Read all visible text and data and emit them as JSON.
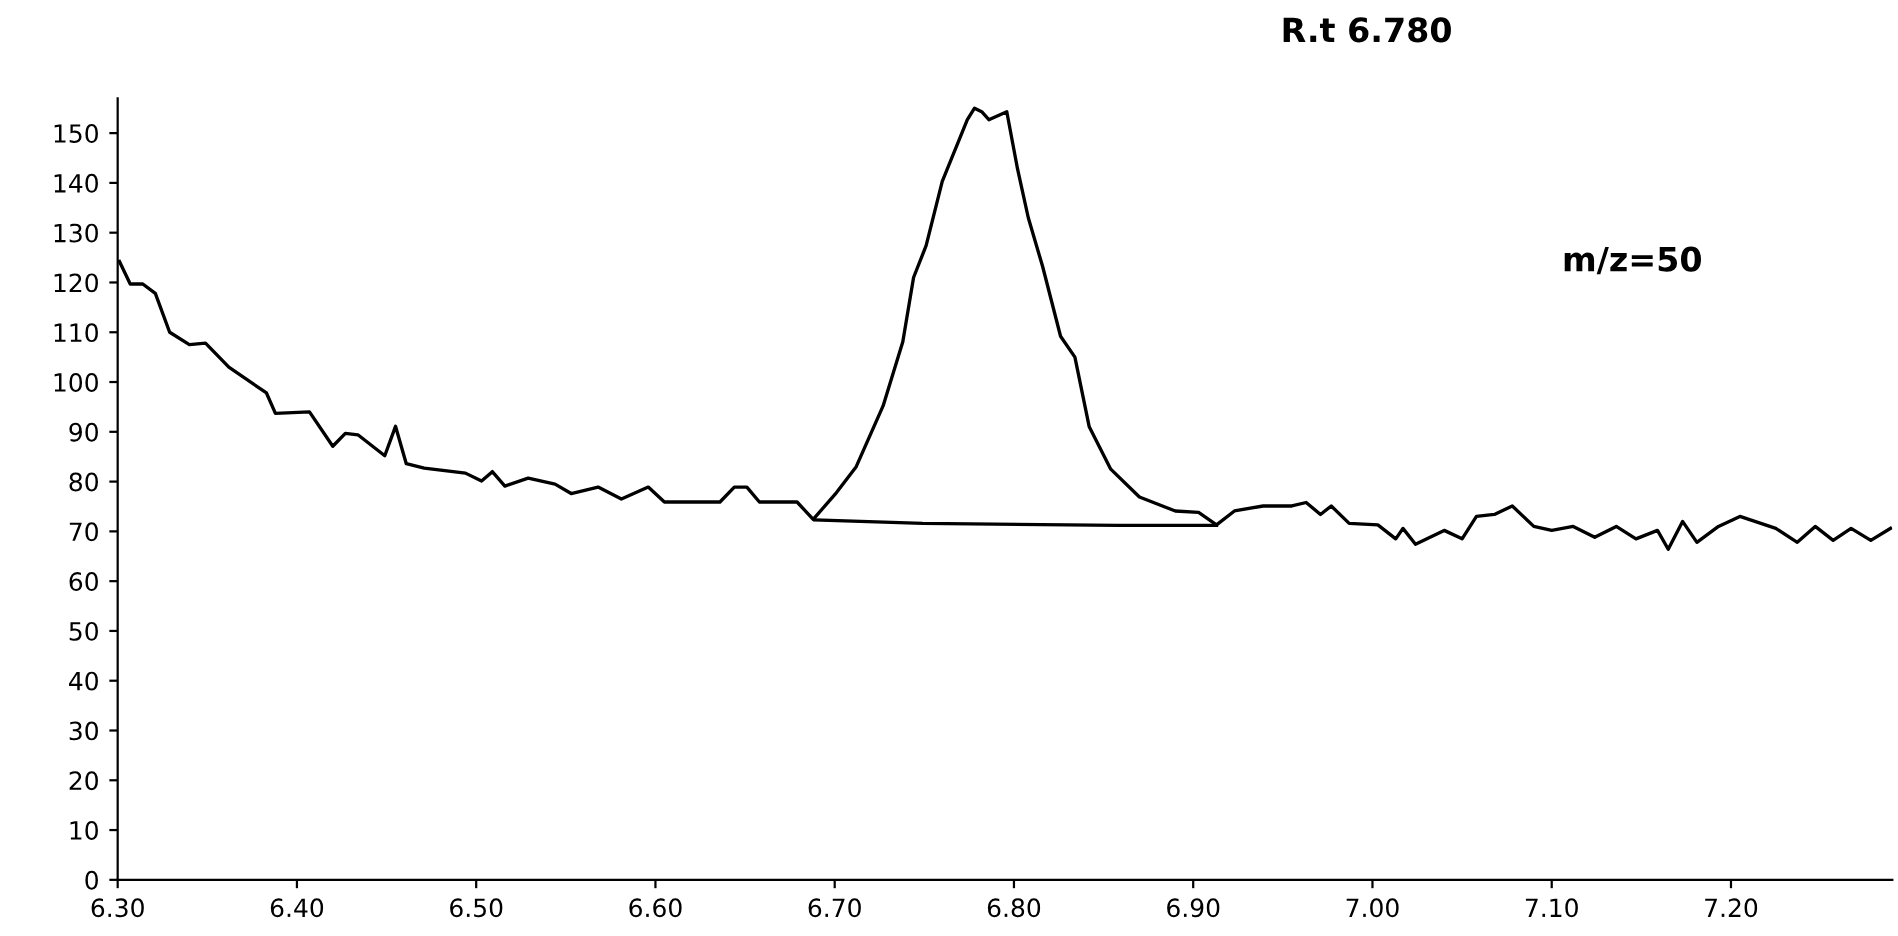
{
  "chart_data": {
    "type": "line",
    "annotations": [
      "R.t 6.780",
      "m/z=50"
    ],
    "series": [
      {
        "color": "#000000",
        "x": [
          6.301,
          6.307,
          6.314,
          6.321,
          6.329,
          6.34,
          6.349,
          6.362,
          6.383,
          6.388,
          6.407,
          6.42,
          6.427,
          6.434,
          6.449,
          6.455,
          6.461,
          6.471,
          6.494,
          6.503,
          6.509,
          6.516,
          6.529,
          6.544,
          6.553,
          6.568,
          6.581,
          6.596,
          6.605,
          6.636,
          6.644,
          6.651,
          6.658,
          6.679,
          6.688,
          6.701,
          6.712,
          6.727,
          6.738,
          6.744,
          6.751,
          6.76,
          6.774,
          6.778,
          6.782,
          6.786,
          6.796,
          6.802,
          6.808,
          6.816,
          6.826,
          6.834,
          6.842,
          6.854,
          6.87,
          6.89,
          6.903,
          6.913,
          6.923,
          6.939,
          6.955,
          6.963,
          6.971,
          6.977,
          6.987,
          7.003,
          7.013,
          7.017,
          7.024,
          7.04,
          7.05,
          7.058,
          7.068,
          7.078,
          7.09,
          7.1,
          7.112,
          7.124,
          7.136,
          7.147,
          7.159,
          7.165,
          7.173,
          7.181,
          7.193,
          7.205,
          7.225,
          7.237,
          7.247,
          7.257,
          7.267,
          7.278,
          7.289
        ],
        "values": [
          124.2,
          119.7,
          119.7,
          117.8,
          110,
          107.5,
          107.8,
          103,
          97.8,
          93.7,
          94,
          87.1,
          89.7,
          89.4,
          85.2,
          91.1,
          83.6,
          82.7,
          81.7,
          80.1,
          82,
          79.1,
          80.7,
          79.5,
          77.6,
          78.9,
          76.5,
          78.9,
          75.9,
          75.9,
          78.9,
          78.9,
          75.9,
          75.9,
          72.4,
          77.8,
          83,
          95.2,
          108.1,
          121,
          127.4,
          140.3,
          152.7,
          155,
          154.3,
          152.7,
          154.3,
          142.8,
          133,
          123.2,
          109.2,
          105,
          91,
          82.5,
          76.9,
          74.1,
          73.8,
          71.3,
          74.1,
          75.1,
          75.1,
          75.8,
          73.4,
          75.1,
          71.6,
          71.3,
          68.5,
          70.6,
          67.4,
          70.2,
          68.5,
          73,
          73.4,
          75.1,
          71,
          70.2,
          71,
          68.8,
          71,
          68.5,
          70.2,
          66.4,
          72,
          67.8,
          71,
          73,
          70.6,
          67.8,
          71,
          68.2,
          70.6,
          68.2,
          70.6
        ]
      },
      {
        "color": "#000000",
        "x": [
          6.689,
          6.749,
          6.858,
          6.913
        ],
        "values": [
          72.3,
          71.6,
          71.2,
          71.2
        ]
      }
    ],
    "xlim": [
      6.3,
      7.29
    ],
    "ylim": [
      0,
      157
    ],
    "xticks": [
      {
        "value": 6.3,
        "label": "6.30"
      },
      {
        "value": 6.4,
        "label": "6.40"
      },
      {
        "value": 6.5,
        "label": "6.50"
      },
      {
        "value": 6.6,
        "label": "6.60"
      },
      {
        "value": 6.7,
        "label": "6.70"
      },
      {
        "value": 6.8,
        "label": "6.80"
      },
      {
        "value": 6.9,
        "label": "6.90"
      },
      {
        "value": 7.0,
        "label": "7.00"
      },
      {
        "value": 7.1,
        "label": "7.10"
      },
      {
        "value": 7.2,
        "label": "7.20"
      }
    ],
    "yticks": [
      0,
      10,
      20,
      30,
      40,
      50,
      60,
      70,
      80,
      90,
      100,
      110,
      120,
      130,
      140,
      150
    ],
    "grid": false,
    "legend": false
  }
}
